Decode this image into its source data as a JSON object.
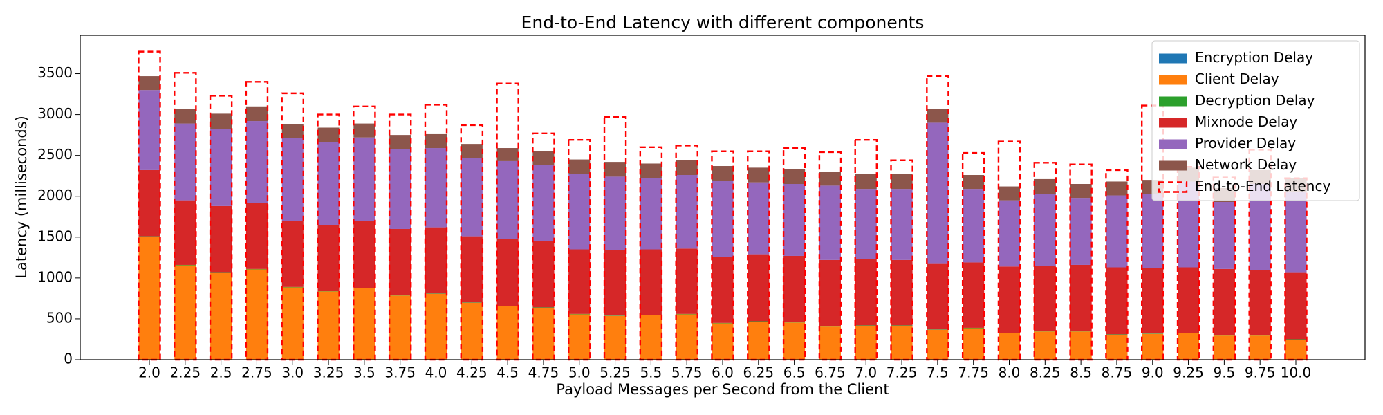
{
  "chart_data": {
    "type": "stacked_bar",
    "title": "End-to-End Latency with different components",
    "xlabel": "Payload Messages per Second from the Client",
    "ylabel": "Latency (milliseconds)",
    "categories": [
      "2.0",
      "2.25",
      "2.5",
      "2.75",
      "3.0",
      "3.25",
      "3.5",
      "3.75",
      "4.0",
      "4.25",
      "4.5",
      "4.75",
      "5.0",
      "5.25",
      "5.5",
      "5.75",
      "6.0",
      "6.25",
      "6.5",
      "6.75",
      "7.0",
      "7.25",
      "7.5",
      "7.75",
      "8.0",
      "8.25",
      "8.5",
      "8.75",
      "9.0",
      "9.25",
      "9.5",
      "9.75",
      "10.0"
    ],
    "series": [
      {
        "name": "Encryption Delay",
        "color": "#1f77b4",
        "values": [
          5,
          5,
          5,
          5,
          5,
          5,
          5,
          5,
          5,
          5,
          5,
          5,
          5,
          5,
          5,
          5,
          5,
          5,
          5,
          5,
          5,
          5,
          5,
          5,
          5,
          5,
          5,
          5,
          5,
          5,
          5,
          5,
          5
        ]
      },
      {
        "name": "Client Delay",
        "color": "#ff7f0e",
        "values": [
          1500,
          1150,
          1060,
          1100,
          880,
          830,
          870,
          780,
          800,
          690,
          650,
          630,
          550,
          530,
          540,
          550,
          440,
          460,
          450,
          400,
          410,
          410,
          360,
          380,
          320,
          340,
          340,
          300,
          310,
          320,
          290,
          290,
          240
        ]
      },
      {
        "name": "Decryption Delay",
        "color": "#2ca02c",
        "values": [
          5,
          5,
          5,
          5,
          5,
          5,
          5,
          5,
          5,
          5,
          5,
          5,
          5,
          5,
          5,
          5,
          5,
          5,
          5,
          5,
          5,
          5,
          5,
          5,
          5,
          5,
          5,
          5,
          5,
          5,
          5,
          5,
          5
        ]
      },
      {
        "name": "Mixnode Delay",
        "color": "#d62728",
        "values": [
          810,
          790,
          810,
          810,
          810,
          810,
          820,
          810,
          810,
          810,
          820,
          810,
          790,
          800,
          800,
          800,
          810,
          820,
          810,
          810,
          810,
          800,
          810,
          800,
          810,
          800,
          810,
          820,
          800,
          800,
          810,
          800,
          820
        ]
      },
      {
        "name": "Provider Delay",
        "color": "#9467bd",
        "values": [
          980,
          940,
          940,
          1000,
          1010,
          1010,
          1020,
          980,
          970,
          960,
          950,
          930,
          920,
          900,
          870,
          900,
          930,
          880,
          880,
          910,
          860,
          870,
          1720,
          900,
          810,
          880,
          820,
          880,
          910,
          1050,
          820,
          1050,
          980
        ]
      },
      {
        "name": "Network Delay",
        "color": "#8c564b",
        "values": [
          170,
          180,
          190,
          180,
          170,
          180,
          170,
          170,
          170,
          170,
          160,
          170,
          180,
          180,
          180,
          180,
          180,
          180,
          180,
          170,
          180,
          180,
          170,
          170,
          170,
          180,
          170,
          170,
          170,
          170,
          170,
          170,
          170
        ]
      }
    ],
    "end_to_end": {
      "name": "End-to-End Latency",
      "color": "#ff0000",
      "values": [
        3770,
        3510,
        3230,
        3400,
        3260,
        3000,
        3100,
        3000,
        3120,
        2870,
        3380,
        2770,
        2690,
        2970,
        2600,
        2620,
        2550,
        2550,
        2590,
        2540,
        2690,
        2440,
        3470,
        2530,
        2670,
        2410,
        2390,
        2320,
        3110,
        2360,
        2230,
        2570,
        2220
      ]
    },
    "ylim": [
      0,
      3970
    ],
    "yticks": [
      0,
      500,
      1000,
      1500,
      2000,
      2500,
      3000,
      3500
    ],
    "grid": false,
    "legend": "upper right"
  }
}
